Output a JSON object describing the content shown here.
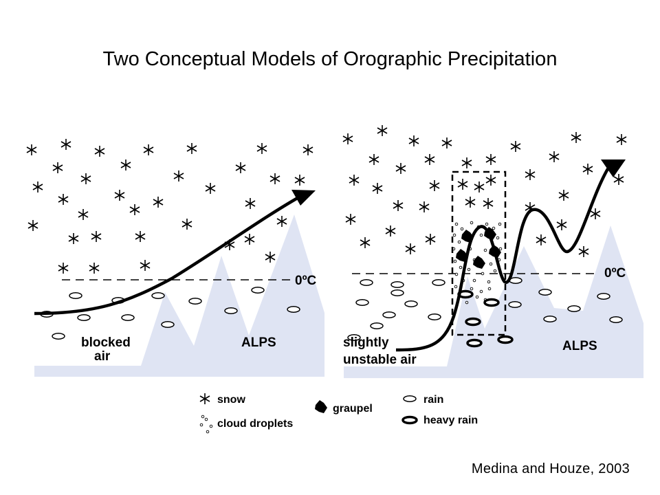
{
  "title": "Two Conceptual Models of Orographic Precipitation",
  "credit": "Medina and Houze, 2003",
  "left_panel": {
    "freezing_level": "0ºC",
    "air_label_line1": "blocked",
    "air_label_line2": "air",
    "terrain_label": "ALPS"
  },
  "right_panel": {
    "freezing_level": "0ºC",
    "air_label_line1": "slightly",
    "air_label_line2": "unstable air",
    "terrain_label": "ALPS"
  },
  "legend": {
    "snow": "snow",
    "cloud_droplets": "cloud droplets",
    "graupel": "graupel",
    "rain": "rain",
    "heavy_rain": "heavy rain"
  },
  "colors": {
    "terrain": "#dfe4f3",
    "ink": "#000000"
  },
  "icons": [
    "snow-icon",
    "cloud-droplets-icon",
    "graupel-icon",
    "rain-icon",
    "heavy-rain-icon"
  ]
}
